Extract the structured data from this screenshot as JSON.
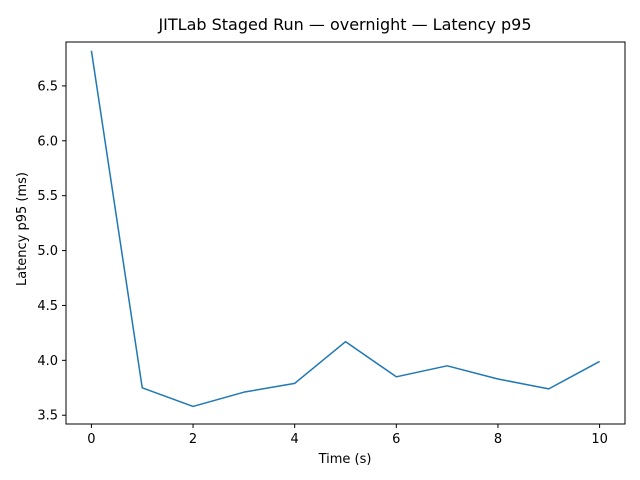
{
  "chart_data": {
    "type": "line",
    "title": "JITLab Staged Run — overnight — Latency p95",
    "xlabel": "Time (s)",
    "ylabel": "Latency p95 (ms)",
    "xlim": [
      -0.5,
      10.5
    ],
    "ylim": [
      3.42,
      6.9
    ],
    "xticks": [
      0,
      2,
      4,
      6,
      8,
      10
    ],
    "xtick_labels": [
      "0",
      "2",
      "4",
      "6",
      "8",
      "10"
    ],
    "yticks": [
      3.5,
      4.0,
      4.5,
      5.0,
      5.5,
      6.0,
      6.5
    ],
    "ytick_labels": [
      "3.5",
      "4.0",
      "4.5",
      "5.0",
      "5.5",
      "6.0",
      "6.5"
    ],
    "grid": false,
    "series": [
      {
        "color": "#1f77b4",
        "x": [
          0,
          1,
          2,
          3,
          4,
          5,
          6,
          7,
          8,
          9,
          10
        ],
        "y": [
          6.82,
          3.75,
          3.58,
          3.71,
          3.79,
          4.17,
          3.85,
          3.95,
          3.83,
          3.74,
          3.99
        ]
      }
    ]
  }
}
